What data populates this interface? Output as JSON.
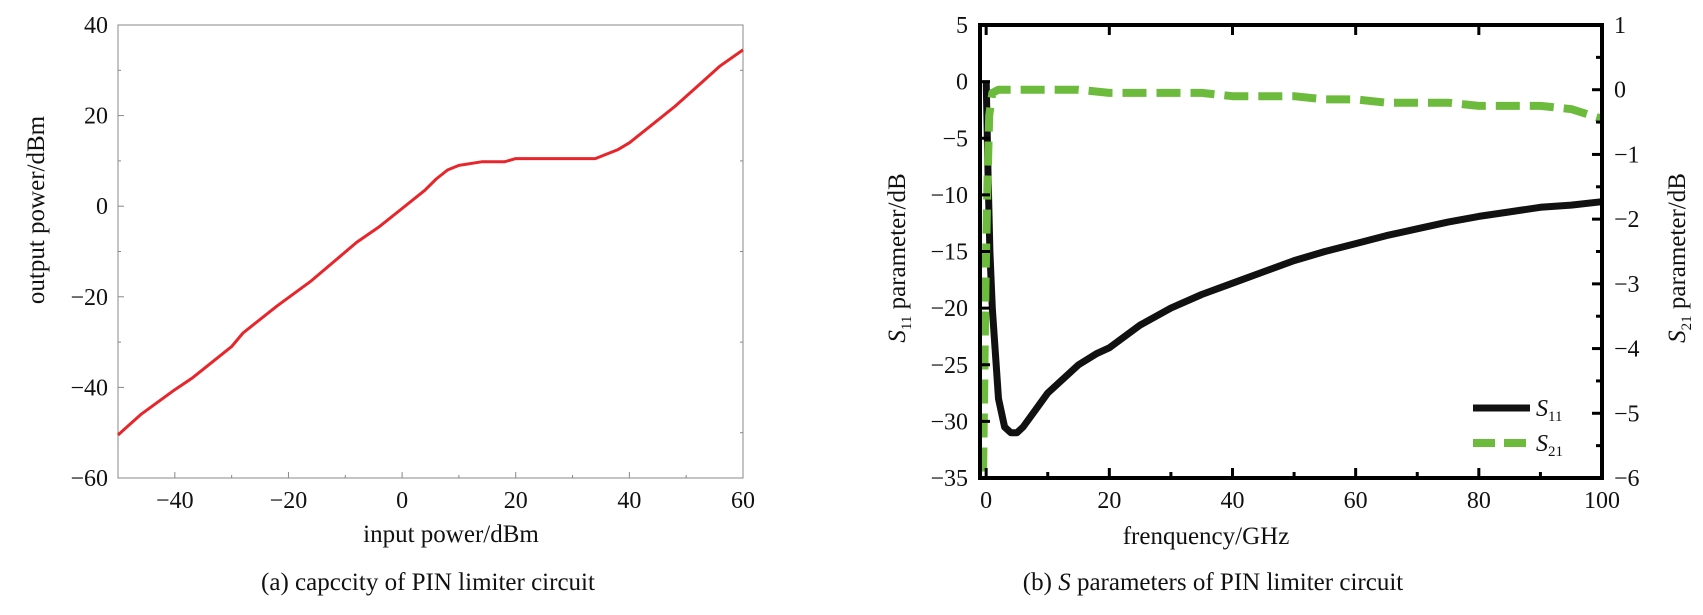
{
  "chart_data": [
    {
      "id": "a",
      "type": "line",
      "caption": "(a) capccity of PIN limiter circuit",
      "xlabel": "input power/dBm",
      "ylabel": "output power/dBm",
      "xlim": [
        -50,
        60
      ],
      "ylim": [
        -60,
        40
      ],
      "xticks": [
        -40,
        -20,
        0,
        20,
        40,
        60
      ],
      "xtick_labels": [
        "−40",
        "−20",
        "0",
        "20",
        "40",
        "60"
      ],
      "yticks": [
        -60,
        -40,
        -20,
        0,
        20,
        40
      ],
      "ytick_labels": [
        "−60",
        "−40",
        "−20",
        "0",
        "20",
        "40"
      ],
      "grid": false,
      "series": [
        {
          "name": "output power",
          "color": "#e8252a",
          "x": [
            -50,
            -46,
            -40,
            -37,
            -30,
            -28,
            -22,
            -16,
            -8,
            -4,
            0,
            4,
            6,
            8,
            10,
            14,
            18,
            20,
            25,
            30,
            34,
            36,
            38,
            40,
            44,
            48,
            52,
            56,
            60
          ],
          "y": [
            -50.5,
            -46,
            -40.5,
            -38,
            -31,
            -28,
            -22,
            -16.5,
            -8,
            -4.5,
            -0.5,
            3.5,
            6,
            8,
            9,
            9.8,
            9.8,
            10.5,
            10.5,
            10.5,
            10.5,
            11.5,
            12.5,
            14,
            18,
            22,
            26.5,
            31,
            34.5
          ]
        }
      ]
    },
    {
      "id": "b",
      "type": "line",
      "caption_prefix": "(b) ",
      "caption_italic": "S",
      "caption_suffix": " parameters of PIN limiter circuit",
      "xlabel": "frenquency/GHz",
      "ylabel_left_symbol": "S",
      "ylabel_left_sub": "11",
      "ylabel_left_text": " parameter/dB",
      "ylabel_right_symbol": "S",
      "ylabel_right_sub": "21",
      "ylabel_right_text": " parameter/dB",
      "xlim": [
        -1,
        100
      ],
      "ylim_left": [
        -35,
        5
      ],
      "ylim_right": [
        -6,
        1
      ],
      "xticks": [
        0,
        20,
        40,
        60,
        80,
        100
      ],
      "xtick_labels": [
        "0",
        "20",
        "40",
        "60",
        "80",
        "100"
      ],
      "yticks_left": [
        -35,
        -30,
        -25,
        -20,
        -15,
        -10,
        -5,
        0,
        5
      ],
      "ytick_labels_left": [
        "−35",
        "−30",
        "−25",
        "−20",
        "−15",
        "−10",
        "−5",
        "0",
        "5"
      ],
      "yticks_right": [
        -6,
        -5,
        -4,
        -3,
        -2,
        -1,
        0,
        1
      ],
      "ytick_labels_right": [
        "−6",
        "−5",
        "−4",
        "−3",
        "−2",
        "−1",
        "0",
        "1"
      ],
      "legend_position": "bottom-right",
      "series": [
        {
          "name": "S11",
          "legend_symbol": "S",
          "legend_sub": "11",
          "axis": "left",
          "color": "#111111",
          "style": "solid",
          "x": [
            0,
            0.3,
            0.6,
            1,
            1.5,
            2,
            3,
            4,
            5,
            6,
            8,
            10,
            12,
            15,
            18,
            20,
            25,
            30,
            35,
            40,
            45,
            50,
            55,
            60,
            65,
            70,
            75,
            80,
            85,
            90,
            95,
            100
          ],
          "y": [
            0,
            -8,
            -15,
            -20,
            -24,
            -28,
            -30.5,
            -31,
            -31,
            -30.5,
            -29,
            -27.5,
            -26.5,
            -25,
            -24,
            -23.5,
            -21.5,
            -20,
            -18.8,
            -17.8,
            -16.8,
            -15.8,
            -15,
            -14.3,
            -13.6,
            -13,
            -12.4,
            -11.9,
            -11.5,
            -11.1,
            -10.9,
            -10.6
          ]
        },
        {
          "name": "S21",
          "legend_symbol": "S",
          "legend_sub": "21",
          "axis": "right",
          "color": "#6cbb3c",
          "style": "dashed",
          "x": [
            -0.5,
            -0.3,
            -0.1,
            0.2,
            0.5,
            1,
            2,
            5,
            10,
            15,
            20,
            25,
            30,
            35,
            40,
            45,
            50,
            55,
            60,
            65,
            70,
            75,
            80,
            85,
            90,
            95,
            100
          ],
          "y": [
            -5.9,
            -4.5,
            -3,
            -1.5,
            -0.4,
            -0.05,
            0,
            0,
            0,
            0,
            -0.05,
            -0.05,
            -0.05,
            -0.05,
            -0.1,
            -0.1,
            -0.1,
            -0.15,
            -0.15,
            -0.2,
            -0.2,
            -0.2,
            -0.25,
            -0.25,
            -0.25,
            -0.3,
            -0.45
          ]
        }
      ]
    }
  ]
}
